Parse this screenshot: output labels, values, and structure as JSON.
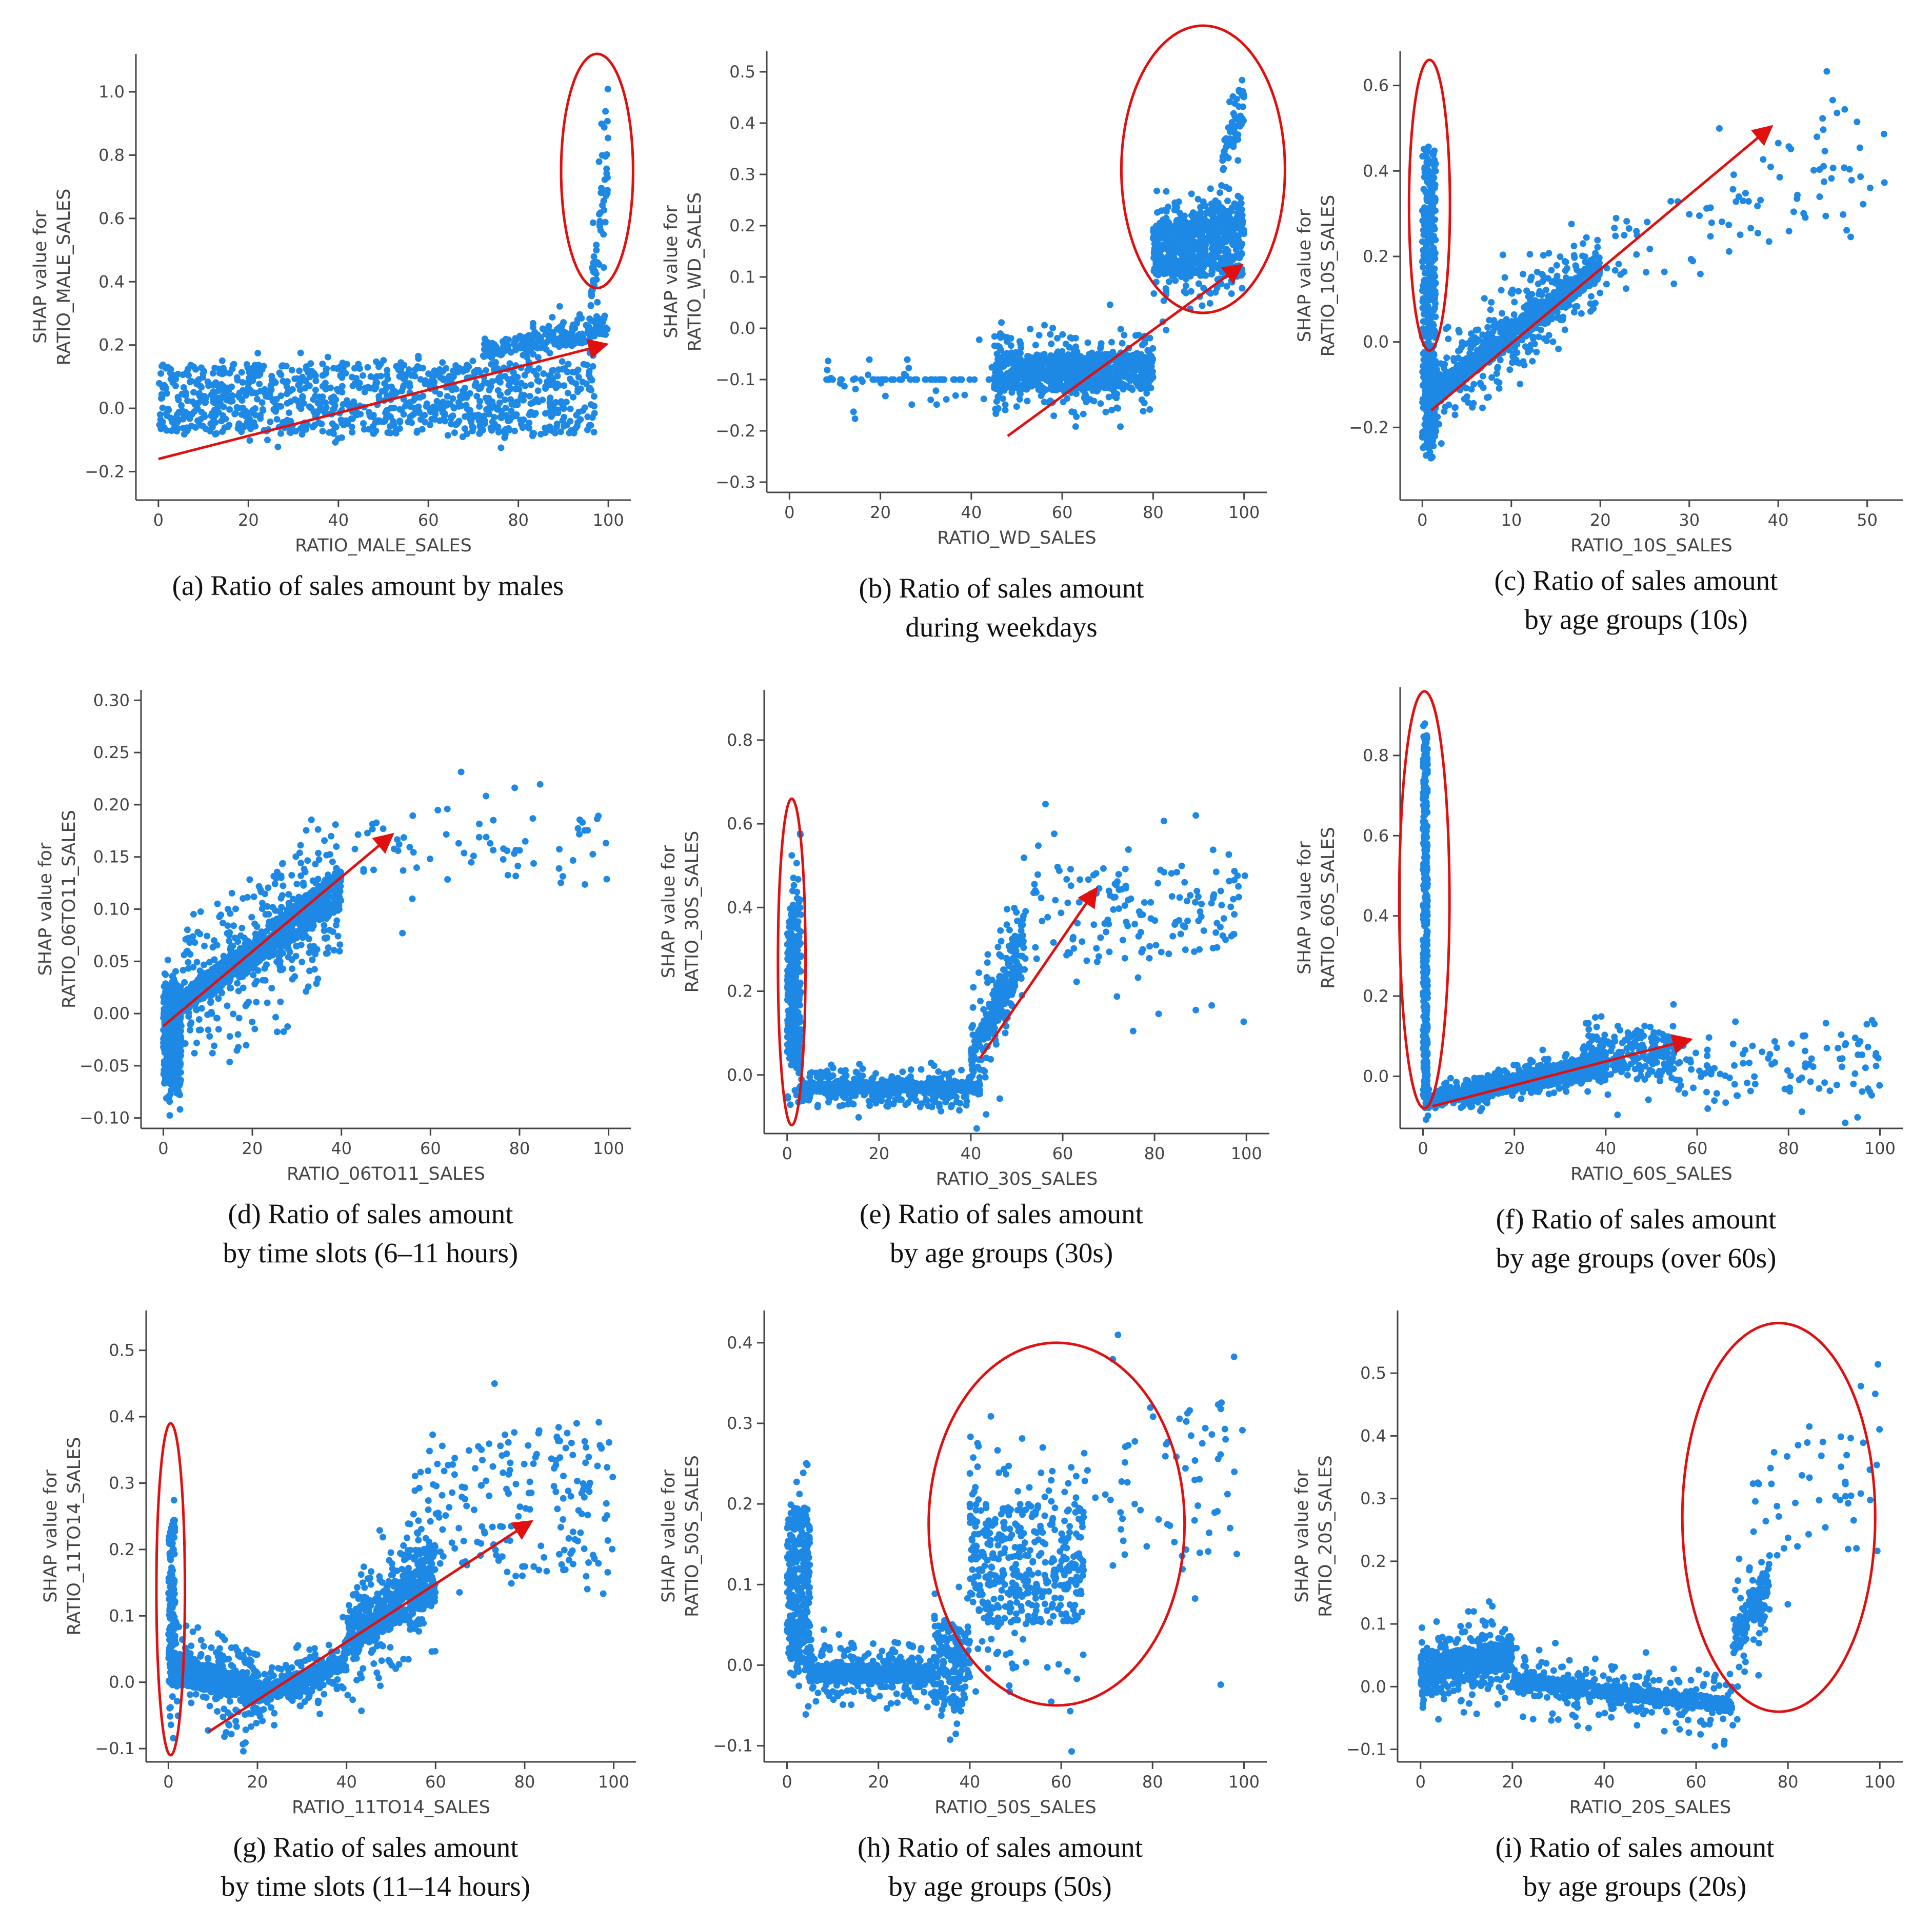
{
  "style": {
    "point_color": "#1e88e5",
    "annotation_color": "#e01010",
    "axis_color": "#444444",
    "background": "#ffffff"
  },
  "chart_data": [
    {
      "id": "a",
      "type": "scatter",
      "xlabel": "RATIO_MALE_SALES",
      "ylabel": [
        "SHAP value for",
        "RATIO_MALE_SALES"
      ],
      "xticks": [
        0,
        20,
        40,
        60,
        80,
        100
      ],
      "yticks": [
        -0.2,
        0.0,
        0.2,
        0.4,
        0.6,
        0.8,
        1.0
      ],
      "xlim": [
        -5,
        105
      ],
      "ylim": [
        -0.29,
        1.12
      ],
      "caption": [
        "(a) Ratio of sales amount by males"
      ],
      "clusters": [
        {
          "x": [
            0,
            97
          ],
          "y_start": [
            -0.08,
            0.14
          ],
          "y_end": [
            -0.08,
            0.14
          ],
          "spread": 0.07,
          "n": 1000
        },
        {
          "x": [
            72,
            100
          ],
          "y_start": [
            0.15,
            0.2
          ],
          "y_end": [
            0.22,
            0.3
          ],
          "spread": 0.09,
          "n": 220
        },
        {
          "x": [
            96,
            100
          ],
          "y_start": [
            0.3,
            0.35
          ],
          "y_end": [
            0.6,
            1.05
          ],
          "spread": 0.35,
          "n": 60
        }
      ],
      "arrow": {
        "from": [
          0,
          -0.16
        ],
        "to": [
          99,
          0.2
        ]
      },
      "ellipses": [
        {
          "cx": 97.5,
          "cy": 0.75,
          "rx": 8,
          "ry": 0.37
        }
      ]
    },
    {
      "id": "b",
      "type": "scatter",
      "xlabel": "RATIO_WD_SALES",
      "ylabel": [
        "SHAP value for",
        "RATIO_WD_SALES"
      ],
      "xticks": [
        0,
        20,
        40,
        60,
        80,
        100
      ],
      "yticks": [
        -0.3,
        -0.2,
        -0.1,
        0.0,
        0.1,
        0.2,
        0.3,
        0.4,
        0.5
      ],
      "xlim": [
        -5,
        105
      ],
      "ylim": [
        -0.32,
        0.54
      ],
      "caption": [
        "(b) Ratio of sales amount",
        "during weekdays"
      ],
      "clusters": [
        {
          "x": [
            45,
            80
          ],
          "y_start": [
            -0.12,
            -0.05
          ],
          "y_end": [
            -0.12,
            -0.05
          ],
          "spread": 0.1,
          "n": 900
        },
        {
          "x": [
            80,
            100
          ],
          "y_start": [
            0.1,
            0.2
          ],
          "y_end": [
            0.1,
            0.25
          ],
          "spread": 0.12,
          "n": 750
        },
        {
          "x": [
            8,
            45
          ],
          "y_start": [
            -0.1,
            -0.1
          ],
          "y_end": [
            -0.1,
            -0.1
          ],
          "spread": 0.12,
          "n": 70
        },
        {
          "x": [
            95,
            100
          ],
          "y_start": [
            0.3,
            0.35
          ],
          "y_end": [
            0.4,
            0.5
          ],
          "spread": 0.1,
          "n": 60
        }
      ],
      "arrow": {
        "from": [
          48,
          -0.21
        ],
        "to": [
          99,
          0.12
        ]
      },
      "ellipses": [
        {
          "cx": 91,
          "cy": 0.31,
          "rx": 18,
          "ry": 0.28
        }
      ]
    },
    {
      "id": "c",
      "type": "scatter",
      "xlabel": "RATIO_10S_SALES",
      "ylabel": [
        "SHAP value for",
        "RATIO_10S_SALES"
      ],
      "xticks": [
        0,
        10,
        20,
        30,
        40,
        50
      ],
      "yticks": [
        -0.2,
        0.0,
        0.2,
        0.4,
        0.6
      ],
      "xlim": [
        -2.5,
        54
      ],
      "ylim": [
        -0.37,
        0.68
      ],
      "caption": [
        "(c) Ratio of sales amount",
        "by age groups (10s)"
      ],
      "clusters": [
        {
          "x": [
            0,
            1.5
          ],
          "y_start": [
            -0.25,
            0.45
          ],
          "y_end": [
            -0.25,
            0.45
          ],
          "spread": 0.1,
          "n": 450
        },
        {
          "x": [
            1,
            20
          ],
          "y_start": [
            -0.15,
            -0.1
          ],
          "y_end": [
            0.15,
            0.2
          ],
          "spread": 0.16,
          "n": 1000
        },
        {
          "x": [
            20,
            52
          ],
          "y_start": [
            0.1,
            0.25
          ],
          "y_end": [
            0.3,
            0.6
          ],
          "spread": 0.2,
          "n": 90
        }
      ],
      "arrow": {
        "from": [
          1,
          -0.16
        ],
        "to": [
          39,
          0.5
        ]
      },
      "ellipses": [
        {
          "cx": 0.8,
          "cy": 0.32,
          "rx": 2.3,
          "ry": 0.34
        }
      ]
    },
    {
      "id": "d",
      "type": "scatter",
      "xlabel": "RATIO_06TO11_SALES",
      "ylabel": [
        "SHAP value for",
        "RATIO_06TO11_SALES"
      ],
      "xticks": [
        0,
        20,
        40,
        60,
        80,
        100
      ],
      "yticks": [
        -0.1,
        -0.05,
        0.0,
        0.05,
        0.1,
        0.15,
        0.2,
        0.25,
        0.3
      ],
      "xlim": [
        -5,
        105
      ],
      "ylim": [
        -0.11,
        0.31
      ],
      "caption": [
        "(d) Ratio of sales amount",
        "by time slots (6–11 hours)"
      ],
      "clusters": [
        {
          "x": [
            0,
            4
          ],
          "y_start": [
            -0.07,
            0.03
          ],
          "y_end": [
            -0.07,
            0.03
          ],
          "spread": 0.05,
          "n": 450
        },
        {
          "x": [
            4,
            40
          ],
          "y_start": [
            0.0,
            0.02
          ],
          "y_end": [
            0.1,
            0.14
          ],
          "spread": 0.1,
          "n": 1100
        },
        {
          "x": [
            40,
            100
          ],
          "y_start": [
            0.13,
            0.18
          ],
          "y_end": [
            0.13,
            0.19
          ],
          "spread": 0.1,
          "n": 70
        }
      ],
      "arrow": {
        "from": [
          0,
          -0.012
        ],
        "to": [
          51,
          0.17
        ]
      },
      "ellipses": []
    },
    {
      "id": "e",
      "type": "scatter",
      "xlabel": "RATIO_30S_SALES",
      "ylabel": [
        "SHAP value for",
        "RATIO_30S_SALES"
      ],
      "xticks": [
        0,
        20,
        40,
        60,
        80,
        100
      ],
      "yticks": [
        0.0,
        0.2,
        0.4,
        0.6,
        0.8
      ],
      "xlim": [
        -5,
        105
      ],
      "ylim": [
        -0.14,
        0.92
      ],
      "caption": [
        "(e) Ratio of sales amount",
        "by age groups (30s)"
      ],
      "clusters": [
        {
          "x": [
            0,
            3
          ],
          "y_start": [
            0.05,
            0.35
          ],
          "y_end": [
            0.0,
            0.45
          ],
          "spread": 0.25,
          "n": 320
        },
        {
          "x": [
            3,
            42
          ],
          "y_start": [
            -0.04,
            -0.02
          ],
          "y_end": [
            -0.04,
            -0.02
          ],
          "spread": 0.06,
          "n": 1000
        },
        {
          "x": [
            40,
            52
          ],
          "y_start": [
            0.02,
            0.06
          ],
          "y_end": [
            0.25,
            0.4
          ],
          "spread": 0.2,
          "n": 300
        },
        {
          "x": [
            52,
            100
          ],
          "y_start": [
            0.25,
            0.5
          ],
          "y_end": [
            0.3,
            0.5
          ],
          "spread": 0.3,
          "n": 160
        }
      ],
      "arrow": {
        "from": [
          42,
          0.04
        ],
        "to": [
          67,
          0.44
        ]
      },
      "ellipses": [
        {
          "cx": 1,
          "cy": 0.27,
          "rx": 3,
          "ry": 0.39
        }
      ]
    },
    {
      "id": "f",
      "type": "scatter",
      "xlabel": "RATIO_60S_SALES",
      "ylabel": [
        "SHAP value for",
        "RATIO_60S_SALES"
      ],
      "xticks": [
        0,
        20,
        40,
        60,
        80,
        100
      ],
      "yticks": [
        0.0,
        0.2,
        0.4,
        0.6,
        0.8
      ],
      "xlim": [
        -5,
        105
      ],
      "ylim": [
        -0.13,
        0.97
      ],
      "caption": [
        "(f) Ratio of sales amount",
        "by age groups (over 60s)"
      ],
      "clusters": [
        {
          "x": [
            0,
            1
          ],
          "y_start": [
            -0.05,
            0.85
          ],
          "y_end": [
            -0.05,
            0.85
          ],
          "spread": 0.1,
          "n": 400
        },
        {
          "x": [
            1,
            40
          ],
          "y_start": [
            -0.07,
            -0.05
          ],
          "y_end": [
            0.0,
            0.06
          ],
          "spread": 0.05,
          "n": 1000
        },
        {
          "x": [
            35,
            55
          ],
          "y_start": [
            0.0,
            0.1
          ],
          "y_end": [
            0.0,
            0.12
          ],
          "spread": 0.12,
          "n": 250
        },
        {
          "x": [
            55,
            100
          ],
          "y_start": [
            -0.05,
            0.05
          ],
          "y_end": [
            -0.05,
            0.15
          ],
          "spread": 0.15,
          "n": 110
        }
      ],
      "arrow": {
        "from": [
          2,
          -0.075
        ],
        "to": [
          58,
          0.09
        ]
      },
      "ellipses": [
        {
          "cx": 0.3,
          "cy": 0.44,
          "rx": 5.5,
          "ry": 0.52
        }
      ]
    },
    {
      "id": "g",
      "type": "scatter",
      "xlabel": "RATIO_11TO14_SALES",
      "ylabel": [
        "SHAP value for",
        "RATIO_11TO14_SALES"
      ],
      "xticks": [
        0,
        20,
        40,
        60,
        80,
        100
      ],
      "yticks": [
        -0.1,
        0.0,
        0.1,
        0.2,
        0.3,
        0.4,
        0.5
      ],
      "xlim": [
        -5,
        105
      ],
      "ylim": [
        -0.12,
        0.56
      ],
      "caption": [
        "(g) Ratio of sales amount",
        "by time slots (11–14 hours)"
      ],
      "clusters": [
        {
          "x": [
            0,
            1.5
          ],
          "y_start": [
            0.0,
            0.25
          ],
          "y_end": [
            0.0,
            0.25
          ],
          "spread": 0.08,
          "n": 120
        },
        {
          "x": [
            0,
            20
          ],
          "y_start": [
            0.0,
            0.05
          ],
          "y_end": [
            -0.03,
            0.0
          ],
          "spread": 0.1,
          "n": 600
        },
        {
          "x": [
            20,
            40
          ],
          "y_start": [
            -0.03,
            -0.01
          ],
          "y_end": [
            0.02,
            0.04
          ],
          "spread": 0.06,
          "n": 500
        },
        {
          "x": [
            40,
            60
          ],
          "y_start": [
            0.04,
            0.1
          ],
          "y_end": [
            0.12,
            0.2
          ],
          "spread": 0.12,
          "n": 600
        },
        {
          "x": [
            55,
            100
          ],
          "y_start": [
            0.15,
            0.35
          ],
          "y_end": [
            0.15,
            0.4
          ],
          "spread": 0.2,
          "n": 200
        }
      ],
      "arrow": {
        "from": [
          9,
          -0.075
        ],
        "to": [
          81,
          0.24
        ]
      },
      "ellipses": [
        {
          "cx": 0.5,
          "cy": 0.14,
          "rx": 3.2,
          "ry": 0.25
        }
      ]
    },
    {
      "id": "h",
      "type": "scatter",
      "xlabel": "RATIO_50S_SALES",
      "ylabel": [
        "SHAP value for",
        "RATIO_50S_SALES"
      ],
      "xticks": [
        0,
        20,
        40,
        60,
        80,
        100
      ],
      "yticks": [
        -0.1,
        0.0,
        0.1,
        0.2,
        0.3,
        0.4
      ],
      "xlim": [
        -5,
        105
      ],
      "ylim": [
        -0.12,
        0.44
      ],
      "caption": [
        "(h) Ratio of sales amount",
        "by age groups (50s)"
      ],
      "clusters": [
        {
          "x": [
            0,
            5
          ],
          "y_start": [
            0.0,
            0.2
          ],
          "y_end": [
            0.0,
            0.2
          ],
          "spread": 0.12,
          "n": 350
        },
        {
          "x": [
            5,
            32
          ],
          "y_start": [
            -0.02,
            0.0
          ],
          "y_end": [
            -0.02,
            0.0
          ],
          "spread": 0.05,
          "n": 700
        },
        {
          "x": [
            32,
            40
          ],
          "y_start": [
            -0.05,
            0.05
          ],
          "y_end": [
            -0.05,
            0.05
          ],
          "spread": 0.08,
          "n": 200
        },
        {
          "x": [
            40,
            65
          ],
          "y_start": [
            0.05,
            0.2
          ],
          "y_end": [
            0.05,
            0.2
          ],
          "spread": 0.18,
          "n": 450
        },
        {
          "x": [
            65,
            100
          ],
          "y_start": [
            0.1,
            0.3
          ],
          "y_end": [
            0.15,
            0.35
          ],
          "spread": 0.2,
          "n": 70
        }
      ],
      "arrow": null,
      "ellipses": [
        {
          "cx": 59,
          "cy": 0.175,
          "rx": 28,
          "ry": 0.225
        }
      ]
    },
    {
      "id": "i",
      "type": "scatter",
      "xlabel": "RATIO_20S_SALES",
      "ylabel": [
        "SHAP value for",
        "RATIO_20S_SALES"
      ],
      "xticks": [
        0,
        20,
        40,
        60,
        80,
        100
      ],
      "yticks": [
        -0.1,
        0.0,
        0.1,
        0.2,
        0.3,
        0.4,
        0.5
      ],
      "xlim": [
        -5,
        105
      ],
      "ylim": [
        -0.12,
        0.6
      ],
      "caption": [
        "(i) Ratio of sales amount",
        "by age groups (20s)"
      ],
      "clusters": [
        {
          "x": [
            0,
            20
          ],
          "y_start": [
            0.0,
            0.05
          ],
          "y_end": [
            0.03,
            0.07
          ],
          "spread": 0.08,
          "n": 700
        },
        {
          "x": [
            20,
            68
          ],
          "y_start": [
            0.0,
            0.02
          ],
          "y_end": [
            -0.04,
            -0.02
          ],
          "spread": 0.07,
          "n": 800
        },
        {
          "x": [
            68,
            76
          ],
          "y_start": [
            0.05,
            0.1
          ],
          "y_end": [
            0.12,
            0.2
          ],
          "spread": 0.15,
          "n": 150
        },
        {
          "x": [
            72,
            100
          ],
          "y_start": [
            0.2,
            0.35
          ],
          "y_end": [
            0.2,
            0.5
          ],
          "spread": 0.25,
          "n": 50
        }
      ],
      "arrow": null,
      "ellipses": [
        {
          "cx": 78,
          "cy": 0.27,
          "rx": 21,
          "ry": 0.31
        }
      ]
    }
  ]
}
